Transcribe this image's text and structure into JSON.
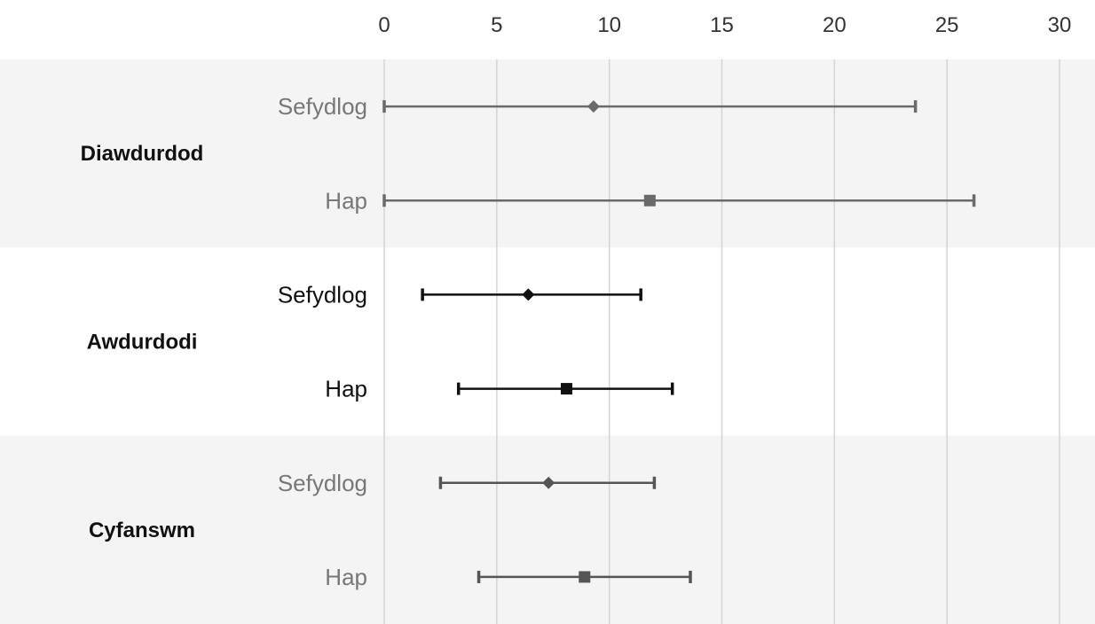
{
  "chart_data": {
    "type": "errorbar",
    "title": "",
    "xlabel": "",
    "ylabel": "",
    "xlim": [
      0,
      30
    ],
    "x_ticks": [
      0,
      5,
      10,
      15,
      20,
      25,
      30
    ],
    "grid": true,
    "legend": "none",
    "groups": [
      {
        "name": "Diawdurdod",
        "shaded": true,
        "color": "#6a6a6a",
        "label_color": "#777777",
        "items": [
          {
            "label": "Sefydlog",
            "marker": "diamond",
            "value": 9.3,
            "low": 0,
            "high": 23.6
          },
          {
            "label": "Hap",
            "marker": "square",
            "value": 11.8,
            "low": 0,
            "high": 26.2
          }
        ]
      },
      {
        "name": "Awdurdodi",
        "shaded": false,
        "color": "#111111",
        "label_color": "#111111",
        "items": [
          {
            "label": "Sefydlog",
            "marker": "diamond",
            "value": 6.4,
            "low": 1.7,
            "high": 11.4
          },
          {
            "label": "Hap",
            "marker": "square",
            "value": 8.1,
            "low": 3.3,
            "high": 12.8
          }
        ]
      },
      {
        "name": "Cyfanswm",
        "shaded": true,
        "color": "#555555",
        "label_color": "#777777",
        "items": [
          {
            "label": "Sefydlog",
            "marker": "diamond",
            "value": 7.3,
            "low": 2.5,
            "high": 12.0
          },
          {
            "label": "Hap",
            "marker": "square",
            "value": 8.9,
            "low": 4.2,
            "high": 13.6
          }
        ]
      }
    ],
    "colors": {
      "band": "#f4f4f4",
      "grid": "#d4d4d4",
      "tick_text": "#333333"
    }
  }
}
